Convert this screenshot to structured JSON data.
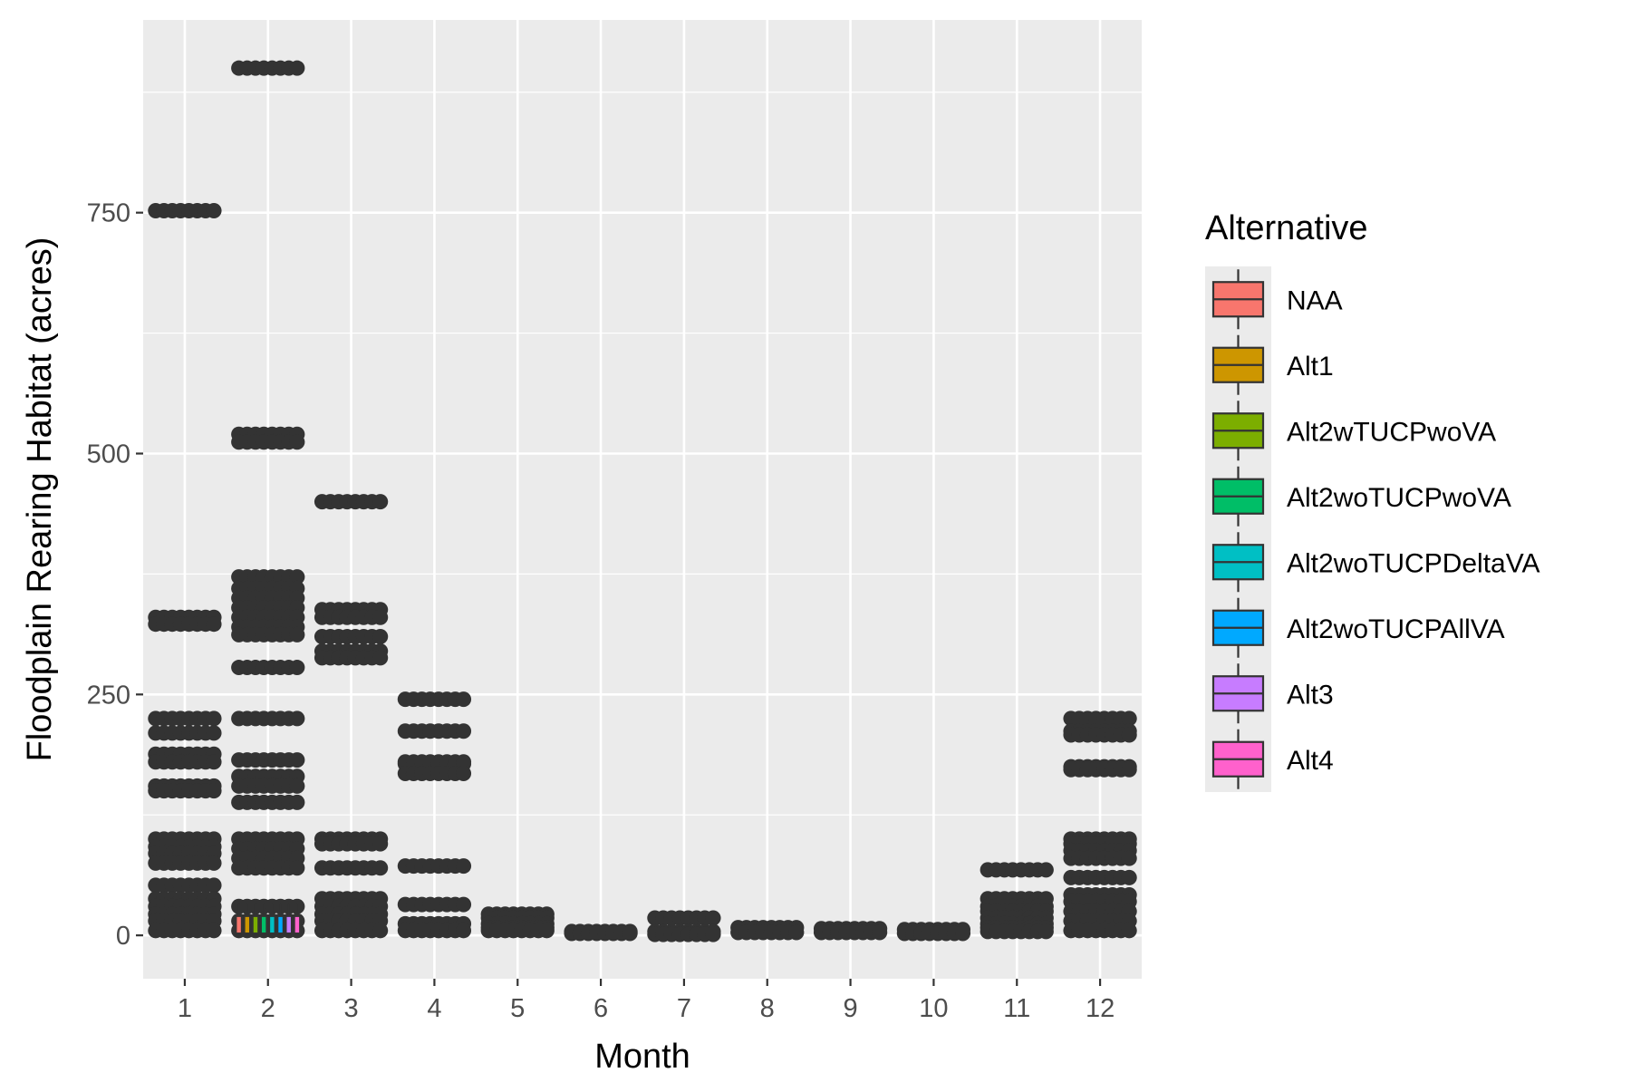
{
  "chart_data": {
    "type": "box",
    "title": "",
    "xlabel": "Month",
    "ylabel": "Floodplain Rearing Habitat (acres)",
    "categories": [
      "1",
      "2",
      "3",
      "4",
      "5",
      "6",
      "7",
      "8",
      "9",
      "10",
      "11",
      "12"
    ],
    "y_ticks": [
      "0",
      "250",
      "500",
      "750"
    ],
    "y_tick_values": [
      0,
      250,
      500,
      750
    ],
    "ylim": [
      -45,
      950
    ],
    "grid": true,
    "legend": {
      "title": "Alternative",
      "position": "right",
      "entries": [
        "NAA",
        "Alt1",
        "Alt2wTUCPwoVA",
        "Alt2woTUCPwoVA",
        "Alt2woTUCPDeltaVA",
        "Alt2woTUCPAllVA",
        "Alt3",
        "Alt4"
      ]
    },
    "series": [
      {
        "name": "NAA",
        "color": "#F8766D"
      },
      {
        "name": "Alt1",
        "color": "#CD9600"
      },
      {
        "name": "Alt2wTUCPwoVA",
        "color": "#7CAE00"
      },
      {
        "name": "Alt2woTUCPwoVA",
        "color": "#00BE67"
      },
      {
        "name": "Alt2woTUCPDeltaVA",
        "color": "#00BFC4"
      },
      {
        "name": "Alt2woTUCPAllVA",
        "color": "#00A9FF"
      },
      {
        "name": "Alt3",
        "color": "#C77CFF"
      },
      {
        "name": "Alt4",
        "color": "#FF61CC"
      }
    ],
    "approx_points_by_month": {
      "1": [
        752,
        330,
        323,
        225,
        210,
        188,
        180,
        155,
        150,
        100,
        92,
        85,
        75,
        52,
        38,
        30,
        22,
        15,
        5
      ],
      "2": [
        900,
        520,
        512,
        372,
        360,
        350,
        340,
        330,
        320,
        312,
        278,
        225,
        182,
        165,
        155,
        138,
        100,
        90,
        80,
        70,
        30,
        15,
        5
      ],
      "3": [
        450,
        338,
        330,
        310,
        295,
        288,
        100,
        95,
        70,
        38,
        30,
        22,
        15,
        5
      ],
      "4": [
        245,
        212,
        180,
        178,
        168,
        72,
        32,
        12,
        5
      ],
      "5": [
        22,
        18,
        12,
        8,
        5
      ],
      "6": [
        4,
        2
      ],
      "7": [
        18,
        4,
        1
      ],
      "8": [
        8,
        3
      ],
      "9": [
        7,
        3
      ],
      "10": [
        6,
        2
      ],
      "11": [
        68,
        38,
        30,
        25,
        18,
        12,
        8,
        4
      ],
      "12": [
        225,
        212,
        208,
        175,
        172,
        100,
        95,
        88,
        80,
        60,
        42,
        35,
        25,
        15,
        5
      ]
    }
  }
}
